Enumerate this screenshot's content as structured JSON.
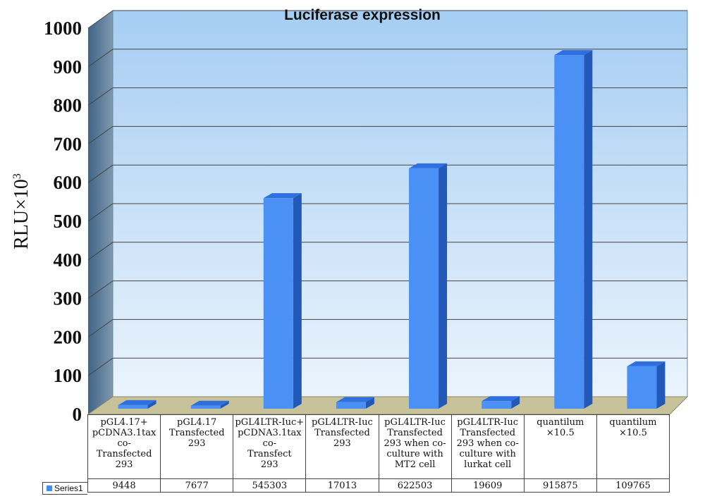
{
  "chart_data": {
    "type": "bar",
    "title": "Luciferase expression",
    "ylabel": "RLU×10",
    "ylabel_sup": "3",
    "ylim": [
      0,
      1000
    ],
    "yticks": [
      0,
      100,
      200,
      300,
      400,
      500,
      600,
      700,
      800,
      900,
      1000
    ],
    "grid": true,
    "three_d": true,
    "legend_position": "left of data table",
    "categories": [
      "pGL4.17+\npCDNA3.1tax\nco-\nTransfected\n293",
      "pGL4.17\nTransfected\n293",
      "pGL4LTR-Iuc+\npCDNA3.1tax\nco-\nTransfect\n293",
      "pGL4LTR-Iuc\nTransfected\n293",
      "pGL4LTR-Iuc\nTransfected\n293 when co-\nculture with\nMT2 cell",
      "pGL4LTR-Iuc\nTransfected\n293 when co-\nculture with\nlurkat cell",
      "quantilum\n×10.5",
      "quantilum\n×10.5"
    ],
    "series": [
      {
        "name": "Series1",
        "values": [
          9448,
          7677,
          545303,
          17013,
          622503,
          19609,
          915875,
          109765
        ],
        "table_values": [
          "9448",
          "7677",
          "545303",
          "17013",
          "622503",
          "19609",
          "915875",
          "109765"
        ],
        "color": "#3f8ef7"
      }
    ]
  },
  "colors": {
    "bar_front": "#4a90f5",
    "bar_side": "#2258b8",
    "bar_top": "#2f6fe0",
    "wall_top": "#a9cff3",
    "wall_bottom": "#e8f3fc",
    "left_wall": "#5a7790",
    "floor": "#c9c39a",
    "grid": "#444444"
  }
}
